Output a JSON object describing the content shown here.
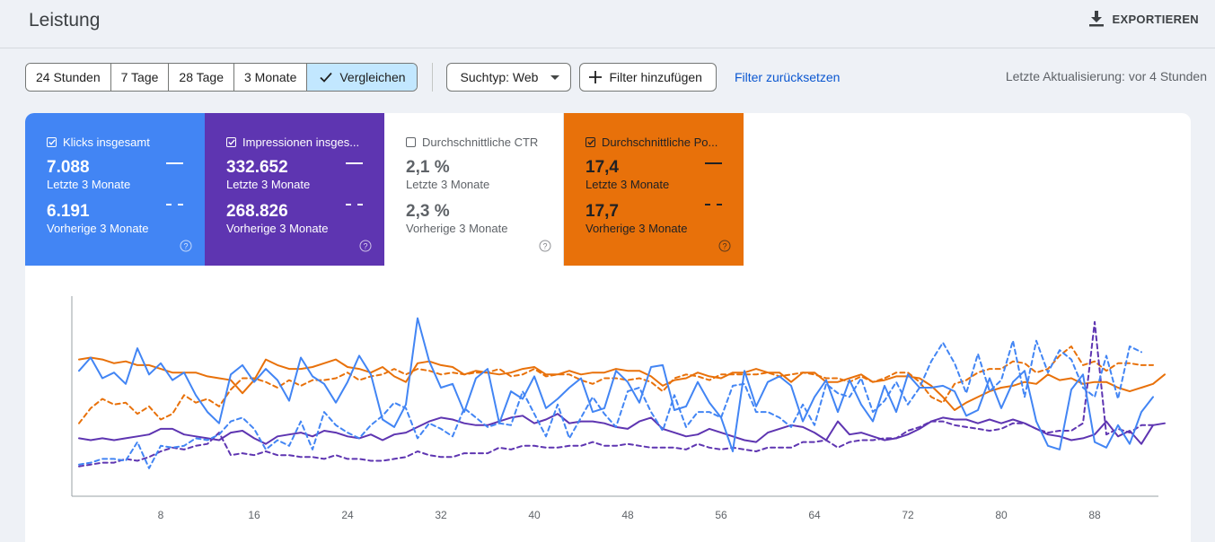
{
  "header": {
    "title": "Leistung",
    "export_label": "EXPORTIEREN"
  },
  "toolbar": {
    "ranges": [
      "24 Stunden",
      "7 Tage",
      "28 Tage",
      "3 Monate"
    ],
    "compare_label": "Vergleichen",
    "search_type": "Suchtyp: Web",
    "add_filter": "Filter hinzufügen",
    "reset_filter": "Filter zurücksetzen",
    "last_update": "Letzte Aktualisierung: vor 4 Stunden"
  },
  "cards": [
    {
      "key": "klicks",
      "label": "Klicks insgesamt",
      "checked": true,
      "current": "7.088",
      "current_label": "Letzte 3 Monate",
      "previous": "6.191",
      "previous_label": "Vorherige 3 Monate",
      "color": "#4285f4"
    },
    {
      "key": "impr",
      "label": "Impressionen insges...",
      "checked": true,
      "current": "332.652",
      "current_label": "Letzte 3 Monate",
      "previous": "268.826",
      "previous_label": "Vorherige 3 Monate",
      "color": "#5e35b1"
    },
    {
      "key": "ctr",
      "label": "Durchschnittliche CTR",
      "checked": false,
      "current": "2,1 %",
      "current_label": "Letzte 3 Monate",
      "previous": "2,3 %",
      "previous_label": "Vorherige 3 Monate",
      "color": "#ffffff"
    },
    {
      "key": "pos",
      "label": "Durchschnittliche Po...",
      "checked": true,
      "current": "17,4",
      "current_label": "Letzte 3 Monate",
      "previous": "17,7",
      "previous_label": "Vorherige 3 Monate",
      "color": "#e8710a"
    }
  ],
  "chart_data": {
    "type": "line",
    "x_ticks": [
      8,
      16,
      24,
      32,
      40,
      48,
      56,
      64,
      72,
      80,
      88
    ],
    "x_range": [
      0,
      92
    ],
    "y_range": [
      0,
      100
    ],
    "y_axis_labels": "hidden",
    "grid": false,
    "series": [
      {
        "metric": "klicks",
        "period": "current",
        "style": "solid",
        "color": "#4285f4",
        "values": [
          65,
          72,
          61,
          64,
          58,
          77,
          63,
          69,
          60,
          64,
          52,
          43,
          37,
          63,
          68,
          59,
          66,
          60,
          49,
          72,
          62,
          58,
          48,
          59,
          73,
          63,
          39,
          35,
          47,
          93,
          70,
          56,
          58,
          43,
          61,
          66,
          37,
          54,
          50,
          62,
          45,
          50,
          56,
          61,
          43,
          45,
          65,
          59,
          48,
          67,
          68,
          44,
          46,
          59,
          48,
          40,
          22,
          65,
          46,
          59,
          62,
          57,
          38,
          51,
          60,
          43,
          60,
          47,
          38,
          57,
          43,
          63,
          56,
          56,
          57,
          54,
          41,
          44,
          61,
          45,
          59,
          65,
          38,
          25,
          23,
          55,
          63,
          27,
          24,
          36,
          26,
          43,
          51
        ]
      },
      {
        "metric": "klicks",
        "period": "previous",
        "style": "dashed",
        "color": "#4285f4",
        "values": [
          15,
          16,
          18,
          18,
          17,
          27,
          13,
          25,
          24,
          25,
          29,
          28,
          31,
          38,
          40,
          34,
          23,
          28,
          25,
          38,
          23,
          43,
          36,
          32,
          29,
          36,
          41,
          48,
          45,
          29,
          37,
          34,
          30,
          45,
          40,
          35,
          37,
          36,
          54,
          42,
          30,
          47,
          29,
          40,
          51,
          42,
          35,
          54,
          56,
          43,
          33,
          52,
          35,
          43,
          43,
          40,
          57,
          58,
          43,
          43,
          40,
          35,
          47,
          36,
          58,
          53,
          51,
          61,
          43,
          49,
          59,
          47,
          56,
          70,
          80,
          69,
          53,
          74,
          54,
          60,
          81,
          51,
          81,
          64,
          76,
          71,
          56,
          51,
          73,
          50,
          78,
          75
        ]
      },
      {
        "metric": "impr",
        "period": "current",
        "style": "solid",
        "color": "#5e35b1",
        "values": [
          29,
          28,
          29,
          28,
          29,
          30,
          31,
          34,
          34,
          31,
          30,
          29,
          28,
          32,
          33,
          29,
          26,
          30,
          31,
          32,
          30,
          33,
          32,
          30,
          29,
          31,
          28,
          31,
          32,
          35,
          38,
          40,
          39,
          37,
          36,
          36,
          38,
          40,
          41,
          37,
          39,
          42,
          37,
          38,
          38,
          37,
          35,
          34,
          38,
          40,
          34,
          32,
          30,
          31,
          34,
          32,
          30,
          28,
          27,
          32,
          34,
          36,
          35,
          32,
          28,
          38,
          31,
          32,
          30,
          28,
          29,
          31,
          34,
          38,
          40,
          39,
          39,
          37,
          39,
          37,
          39,
          37,
          34,
          31,
          30,
          28,
          29,
          31,
          38,
          30,
          33,
          26,
          36,
          37
        ]
      },
      {
        "metric": "impr",
        "period": "previous",
        "style": "dashed",
        "color": "#5e35b1",
        "values": [
          14,
          15,
          16,
          16,
          18,
          17,
          19,
          22,
          24,
          23,
          25,
          26,
          32,
          20,
          21,
          20,
          22,
          20,
          20,
          19,
          19,
          18,
          20,
          18,
          18,
          17,
          17,
          18,
          19,
          22,
          20,
          19,
          19,
          21,
          21,
          21,
          24,
          23,
          25,
          25,
          24,
          24,
          25,
          25,
          27,
          25,
          25,
          26,
          25,
          24,
          24,
          24,
          23,
          26,
          24,
          23,
          24,
          23,
          22,
          24,
          24,
          24,
          27,
          27,
          28,
          24,
          27,
          28,
          28,
          29,
          29,
          33,
          35,
          38,
          38,
          36,
          35,
          34,
          33,
          34,
          37,
          37,
          34,
          32,
          33,
          33,
          37,
          91,
          31,
          34,
          32,
          36,
          36
        ]
      },
      {
        "metric": "pos",
        "period": "current",
        "style": "solid",
        "color": "#e8710a",
        "values": [
          71,
          72,
          71,
          69,
          70,
          68,
          68,
          66,
          64,
          64,
          64,
          62,
          61,
          60,
          53,
          60,
          71,
          68,
          66,
          66,
          67,
          69,
          71,
          67,
          66,
          64,
          67,
          62,
          59,
          69,
          70,
          68,
          67,
          63,
          65,
          64,
          63,
          64,
          66,
          67,
          63,
          63,
          65,
          63,
          64,
          64,
          66,
          65,
          65,
          62,
          57,
          60,
          61,
          64,
          62,
          61,
          64,
          64,
          66,
          64,
          64,
          59,
          64,
          64,
          59,
          59,
          61,
          63,
          59,
          60,
          62,
          62,
          61,
          57,
          51,
          44,
          48,
          51,
          54,
          56,
          57,
          59,
          58,
          63,
          60,
          61,
          58,
          59,
          59,
          56,
          54,
          56,
          58,
          63
        ]
      },
      {
        "metric": "pos",
        "period": "previous",
        "style": "dashed",
        "color": "#e8710a",
        "values": [
          37,
          45,
          50,
          47,
          48,
          42,
          46,
          39,
          42,
          52,
          48,
          50,
          46,
          55,
          61,
          61,
          59,
          56,
          60,
          57,
          60,
          60,
          61,
          64,
          60,
          62,
          63,
          66,
          63,
          66,
          65,
          63,
          64,
          63,
          64,
          64,
          66,
          62,
          63,
          66,
          62,
          63,
          63,
          60,
          58,
          61,
          61,
          60,
          61,
          59,
          54,
          61,
          63,
          62,
          60,
          63,
          63,
          63,
          63,
          64,
          62,
          63,
          64,
          63,
          61,
          61,
          59,
          62,
          59,
          61,
          64,
          64,
          59,
          51,
          48,
          58,
          60,
          64,
          66,
          66,
          70,
          69,
          64,
          66,
          73,
          78,
          68,
          70,
          65,
          69,
          69,
          68,
          68
        ]
      }
    ]
  }
}
